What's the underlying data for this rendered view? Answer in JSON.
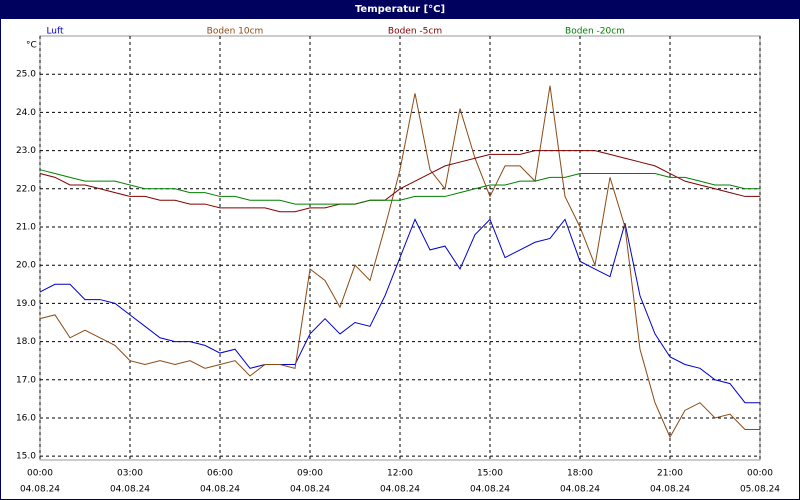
{
  "chart_data": {
    "type": "line",
    "title": "Temperatur [°C]",
    "y_unit": "°C",
    "x": [
      0,
      0.5,
      1,
      1.5,
      2,
      2.5,
      3,
      3.5,
      4,
      4.5,
      5,
      5.5,
      6,
      6.5,
      7,
      7.5,
      8,
      8.5,
      9,
      9.5,
      10,
      10.5,
      11,
      11.5,
      12,
      12.5,
      13,
      13.5,
      14,
      14.5,
      15,
      15.5,
      16,
      16.5,
      17,
      17.5,
      18,
      18.5,
      19,
      19.5,
      20,
      20.5,
      21,
      21.5,
      22,
      22.5,
      23,
      23.5,
      24
    ],
    "series": [
      {
        "name": "Luft",
        "color": "#0000cc",
        "values": [
          19.3,
          19.5,
          19.5,
          19.1,
          19.1,
          19.0,
          18.7,
          18.4,
          18.1,
          18.0,
          18.0,
          17.9,
          17.7,
          17.8,
          17.3,
          17.4,
          17.4,
          17.4,
          18.2,
          18.6,
          18.2,
          18.5,
          18.4,
          19.2,
          20.2,
          21.2,
          20.4,
          20.5,
          19.9,
          20.8,
          21.2,
          20.2,
          20.4,
          20.6,
          20.7,
          21.2,
          20.1,
          19.9,
          19.7,
          21.1,
          19.2,
          18.2,
          17.6,
          17.4,
          17.3,
          17.0,
          16.9,
          16.4,
          16.4
        ]
      },
      {
        "name": "Boden 10cm",
        "color": "#8b4a14",
        "values": [
          18.6,
          18.7,
          18.1,
          18.3,
          18.1,
          17.9,
          17.5,
          17.4,
          17.5,
          17.4,
          17.5,
          17.3,
          17.4,
          17.5,
          17.1,
          17.4,
          17.4,
          17.3,
          19.9,
          19.6,
          18.9,
          20.0,
          19.6,
          21.0,
          22.5,
          24.5,
          22.5,
          22.0,
          24.1,
          22.8,
          21.8,
          22.6,
          22.6,
          22.2,
          24.7,
          21.8,
          21.0,
          20.0,
          22.3,
          21.0,
          17.8,
          16.4,
          15.5,
          16.2,
          16.4,
          16.0,
          16.1,
          15.7,
          15.7
        ]
      },
      {
        "name": "Boden -5cm",
        "color": "#800000",
        "values": [
          22.4,
          22.3,
          22.1,
          22.1,
          22.0,
          21.9,
          21.8,
          21.8,
          21.7,
          21.7,
          21.6,
          21.6,
          21.5,
          21.5,
          21.5,
          21.5,
          21.4,
          21.4,
          21.5,
          21.5,
          21.6,
          21.6,
          21.7,
          21.7,
          22.0,
          22.2,
          22.4,
          22.6,
          22.7,
          22.8,
          22.9,
          22.9,
          22.9,
          23.0,
          23.0,
          23.0,
          23.0,
          23.0,
          22.9,
          22.8,
          22.7,
          22.6,
          22.4,
          22.2,
          22.1,
          22.0,
          21.9,
          21.8,
          21.8
        ]
      },
      {
        "name": "Boden -20cm",
        "color": "#008000",
        "values": [
          22.5,
          22.4,
          22.3,
          22.2,
          22.2,
          22.2,
          22.1,
          22.0,
          22.0,
          22.0,
          21.9,
          21.9,
          21.8,
          21.8,
          21.7,
          21.7,
          21.7,
          21.6,
          21.6,
          21.6,
          21.6,
          21.6,
          21.7,
          21.7,
          21.7,
          21.8,
          21.8,
          21.8,
          21.9,
          22.0,
          22.1,
          22.1,
          22.2,
          22.2,
          22.3,
          22.3,
          22.4,
          22.4,
          22.4,
          22.4,
          22.4,
          22.4,
          22.3,
          22.3,
          22.2,
          22.1,
          22.1,
          22.0,
          22.0
        ]
      }
    ],
    "xlim": [
      0,
      24
    ],
    "xticks": [
      {
        "value": 0,
        "label": "00:00",
        "date": "04.08.24"
      },
      {
        "value": 3,
        "label": "03:00",
        "date": "04.08.24"
      },
      {
        "value": 6,
        "label": "06:00",
        "date": "04.08.24"
      },
      {
        "value": 9,
        "label": "09:00",
        "date": "04.08.24"
      },
      {
        "value": 12,
        "label": "12:00",
        "date": "04.08.24"
      },
      {
        "value": 15,
        "label": "15:00",
        "date": "04.08.24"
      },
      {
        "value": 18,
        "label": "18:00",
        "date": "04.08.24"
      },
      {
        "value": 21,
        "label": "21:00",
        "date": "04.08.24"
      },
      {
        "value": 24,
        "label": "00:00",
        "date": "05.08.24"
      }
    ],
    "ylim": [
      14.9,
      26.0
    ],
    "yticks": [
      {
        "value": 15,
        "label": "15.0"
      },
      {
        "value": 16,
        "label": "16.0"
      },
      {
        "value": 17,
        "label": "17.0"
      },
      {
        "value": 18,
        "label": "18.0"
      },
      {
        "value": 19,
        "label": "19.0"
      },
      {
        "value": 20,
        "label": "20.0"
      },
      {
        "value": 21,
        "label": "21.0"
      },
      {
        "value": 22,
        "label": "22.0"
      },
      {
        "value": 23,
        "label": "23.0"
      },
      {
        "value": 24,
        "label": "24.0"
      },
      {
        "value": 25,
        "label": "25.0"
      }
    ],
    "grid": true
  }
}
